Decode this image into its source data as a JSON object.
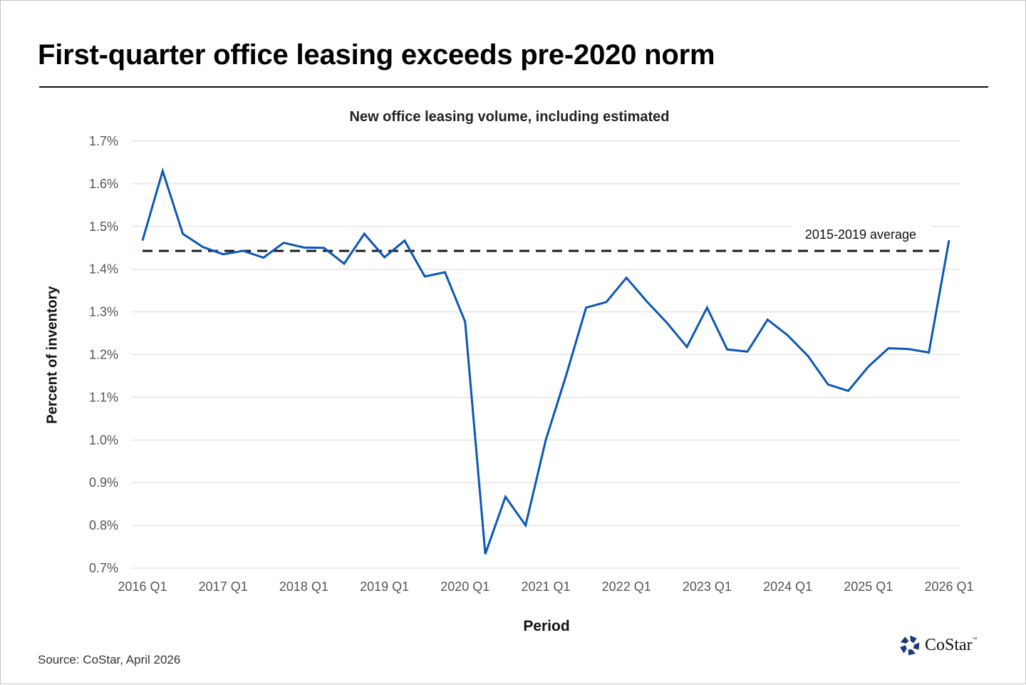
{
  "header": {
    "title": "First-quarter office leasing exceeds pre-2020 norm"
  },
  "footer": {
    "source": "Source: CoStar, April 2026",
    "logo_text": "CoStar",
    "logo_tm": "™"
  },
  "colors": {
    "series": "#0b57b5",
    "average_line": "#1a1a1a",
    "grid": "#d9d9d9",
    "logo": "#1f3a7a"
  },
  "chart_data": {
    "type": "line",
    "title": "New office leasing volume, including estimated",
    "xlabel": "Period",
    "ylabel": "Percent of inventory",
    "ylim": [
      0.7,
      1.7
    ],
    "yticks": [
      "1.7%",
      "1.6%",
      "1.5%",
      "1.4%",
      "1.3%",
      "1.2%",
      "1.1%",
      "1.0%",
      "0.9%",
      "0.8%",
      "0.7%"
    ],
    "ytick_values": [
      1.7,
      1.6,
      1.5,
      1.4,
      1.3,
      1.2,
      1.1,
      1.0,
      0.9,
      0.8,
      0.7
    ],
    "xtick_labels": [
      "2016 Q1",
      "2017 Q1",
      "2018 Q1",
      "2019 Q1",
      "2020 Q1",
      "2021 Q1",
      "2022 Q1",
      "2023 Q1",
      "2024 Q1",
      "2025 Q1",
      "2026 Q1"
    ],
    "grid": true,
    "legend": "none",
    "x": [
      "2016 Q1",
      "2016 Q2",
      "2016 Q3",
      "2016 Q4",
      "2017 Q1",
      "2017 Q2",
      "2017 Q3",
      "2017 Q4",
      "2018 Q1",
      "2018 Q2",
      "2018 Q3",
      "2018 Q4",
      "2019 Q1",
      "2019 Q2",
      "2019 Q3",
      "2019 Q4",
      "2020 Q1",
      "2020 Q2",
      "2020 Q3",
      "2020 Q4",
      "2021 Q1",
      "2021 Q2",
      "2021 Q3",
      "2021 Q4",
      "2022 Q1",
      "2022 Q2",
      "2022 Q3",
      "2022 Q4",
      "2023 Q1",
      "2023 Q2",
      "2023 Q3",
      "2023 Q4",
      "2024 Q1",
      "2024 Q2",
      "2024 Q3",
      "2024 Q4",
      "2025 Q1",
      "2025 Q2",
      "2025 Q3",
      "2025 Q4",
      "2026 Q1"
    ],
    "series": [
      {
        "name": "New office leasing volume (% of inventory)",
        "values": [
          1.467,
          1.63,
          1.483,
          1.452,
          1.435,
          1.443,
          1.427,
          1.462,
          1.451,
          1.45,
          1.413,
          1.483,
          1.428,
          1.467,
          1.383,
          1.393,
          1.277,
          0.733,
          0.867,
          0.8,
          1.0,
          1.15,
          1.31,
          1.323,
          1.38,
          1.325,
          1.275,
          1.218,
          1.31,
          1.212,
          1.207,
          1.282,
          1.245,
          1.197,
          1.13,
          1.115,
          1.172,
          1.215,
          1.213,
          1.205,
          1.468
        ]
      }
    ],
    "reference_lines": [
      {
        "name": "2015-2019 average",
        "value": 1.443,
        "style": "dashed",
        "label": "2015-2019 average"
      }
    ]
  }
}
